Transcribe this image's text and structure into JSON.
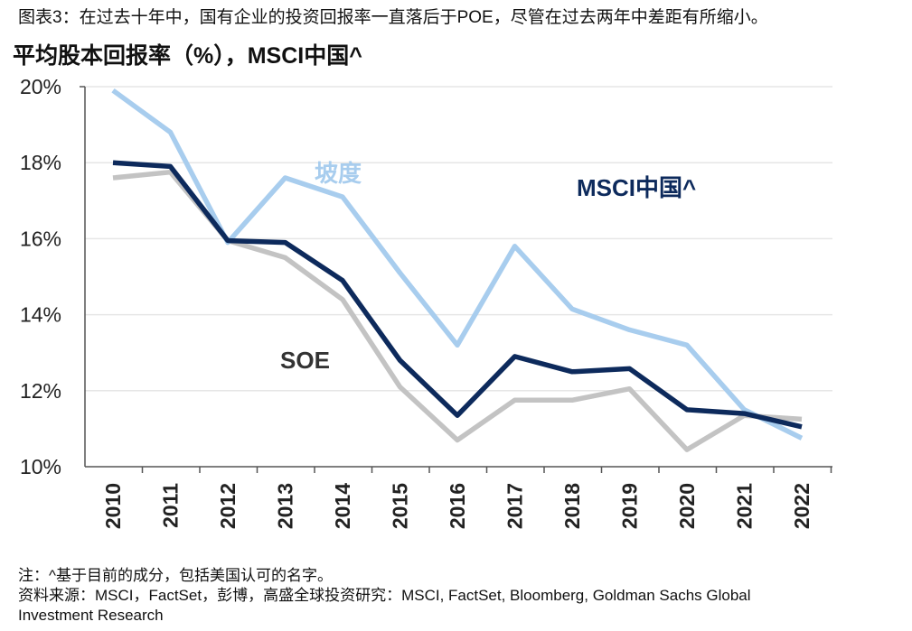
{
  "figure_title": "图表3：在过去十年中，国有企业的投资回报率一直落后于POE，尽管在过去两年中差距有所缩小。",
  "notes": [
    "注：^基于目前的成分，包括美国认可的名字。",
    "资料来源：MSCI，FactSet，彭博，高盛全球投资研究：MSCI, FactSet, Bloomberg, Goldman Sachs Global",
    "Investment Research"
  ],
  "colors": {
    "series_light": "#a8cdee",
    "series_dark": "#0d2a5c",
    "series_gray": "#c3c3c3",
    "gridline": "#e6e6e6",
    "axis": "#555555"
  },
  "chart_data": {
    "type": "line",
    "title": "平均股本回报率（%），MSCI中国^",
    "xlabel": "",
    "ylabel": "",
    "categories": [
      "2010",
      "2011",
      "2012",
      "2013",
      "2014",
      "2015",
      "2016",
      "2017",
      "2018",
      "2019",
      "2020",
      "2021",
      "2022"
    ],
    "ylim": [
      10,
      20
    ],
    "yticks": [
      10,
      12,
      14,
      16,
      18,
      20
    ],
    "ytick_labels": [
      "10%",
      "12%",
      "14%",
      "16%",
      "18%",
      "20%"
    ],
    "grid": true,
    "series": [
      {
        "name": "坡度",
        "color_key": "series_light",
        "values": [
          19.9,
          18.8,
          15.9,
          17.6,
          17.1,
          15.1,
          13.2,
          15.8,
          14.15,
          13.6,
          13.2,
          11.5,
          10.75
        ]
      },
      {
        "name": "MSCI中国^",
        "color_key": "series_dark",
        "values": [
          18.0,
          17.9,
          15.95,
          15.9,
          14.9,
          12.8,
          11.35,
          12.9,
          12.5,
          12.58,
          11.5,
          11.4,
          11.05
        ]
      },
      {
        "name": "SOE",
        "color_key": "series_gray",
        "values": [
          17.6,
          17.75,
          15.95,
          15.5,
          14.4,
          12.1,
          10.7,
          11.75,
          11.75,
          12.05,
          10.45,
          11.35,
          11.25
        ]
      }
    ]
  }
}
